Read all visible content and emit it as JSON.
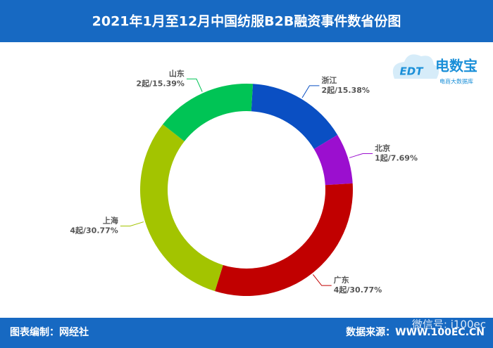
{
  "chart_data": {
    "type": "donut",
    "title": "2021年1月至12月中国纺服B2B融资事件数省份图",
    "categories": [
      "浙江",
      "北京",
      "广东",
      "上海",
      "山东"
    ],
    "values": [
      2,
      1,
      4,
      4,
      2
    ],
    "value_labels": [
      "2起/15.38%",
      "1起/7.69%",
      "4起/30.77%",
      "4起/30.77%",
      "2起/15.39%"
    ],
    "colors": [
      "#0a4fc3",
      "#9b0fcf",
      "#c10000",
      "#a3c400",
      "#00c455"
    ]
  },
  "logo": {
    "name": "电数宝",
    "mark": "EDT",
    "tagline": "电商大数据库"
  },
  "footer": {
    "compiler": "图表编制：网经社",
    "source": "数据来源：WWW.100EC.CN",
    "watermark": "微信号: i100ec"
  }
}
